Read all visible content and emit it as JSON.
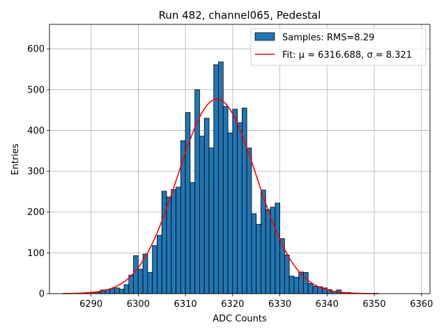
{
  "chart_data": {
    "type": "bar",
    "title": "Run 482, channel065, Pedestal",
    "xlabel": "ADC Counts",
    "ylabel": "Entries",
    "xlim": [
      6281.2,
      6361.8
    ],
    "ylim": [
      0,
      660
    ],
    "xticks": [
      6290,
      6300,
      6310,
      6320,
      6330,
      6340,
      6350,
      6360
    ],
    "yticks": [
      0,
      100,
      200,
      300,
      400,
      500,
      600
    ],
    "grid": true,
    "legend_position": "top-right",
    "colors": {
      "bars": "#1f77b4",
      "bar_edge": "#000000",
      "fit": "#ff0000",
      "grid": "#b0b0b0"
    },
    "histogram": {
      "name": "Samples: RMS=8.29",
      "bin_start": 6284,
      "bin_width": 1,
      "counts": [
        0,
        0,
        0,
        1,
        1,
        3,
        4,
        4,
        9,
        10,
        12,
        14,
        11,
        22,
        45,
        93,
        60,
        97,
        52,
        118,
        143,
        251,
        237,
        255,
        261,
        375,
        444,
        272,
        500,
        386,
        430,
        357,
        561,
        568,
        459,
        394,
        452,
        419,
        455,
        357,
        196,
        170,
        254,
        206,
        212,
        222,
        135,
        95,
        43,
        40,
        53,
        52,
        25,
        18,
        17,
        14,
        10,
        6,
        9,
        3,
        3,
        1,
        1,
        0,
        0,
        0,
        0
      ]
    },
    "fit": {
      "name": "Fit: μ = 6316.688, σ = 8.321",
      "amplitude": 477,
      "mu": 6316.688,
      "sigma": 8.321,
      "x_range": [
        6284,
        6351
      ]
    }
  }
}
